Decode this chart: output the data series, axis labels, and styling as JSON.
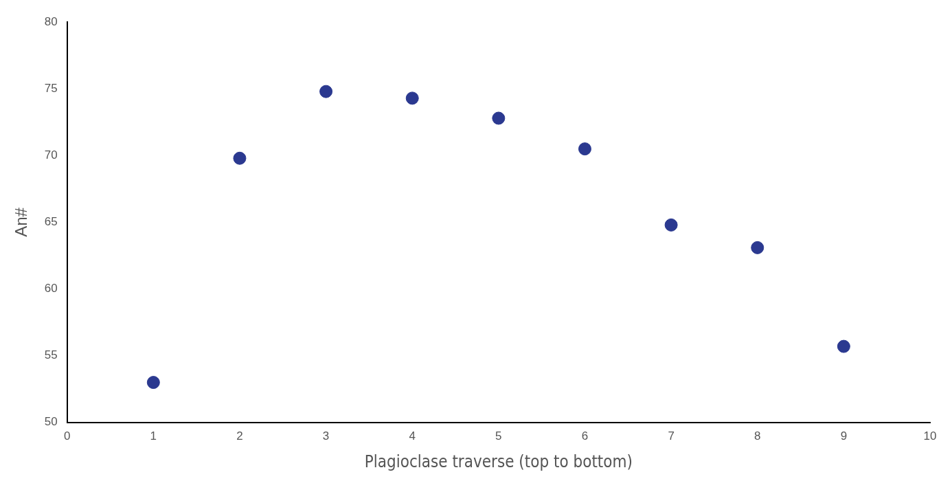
{
  "chart_data": {
    "type": "scatter",
    "xlabel": "Plagioclase traverse (top to bottom)",
    "ylabel": "An#",
    "x": [
      1,
      2,
      3,
      4,
      5,
      6,
      7,
      8,
      9
    ],
    "values": [
      53.0,
      69.8,
      74.8,
      74.3,
      72.8,
      70.5,
      64.8,
      63.1,
      55.7
    ],
    "color": "#2b3990",
    "marker": "circle",
    "xlim": [
      0,
      10
    ],
    "ylim": [
      50,
      80
    ],
    "xticks": [
      0,
      1,
      2,
      3,
      4,
      5,
      6,
      7,
      8,
      9,
      10
    ],
    "yticks": [
      50,
      55,
      60,
      65,
      70,
      75,
      80
    ]
  }
}
